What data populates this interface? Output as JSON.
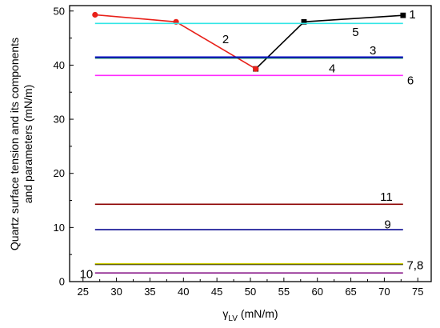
{
  "chart_data": {
    "type": "line",
    "xlabel": "γLV (mN/m)",
    "xlabel_symbol": "γ",
    "xlabel_subscript": "LV",
    "xlabel_unit": "(mN/m)",
    "ylabel_lines": [
      "Quartz surface tension and its components",
      "and parameters (mN/m)"
    ],
    "xlim": [
      23,
      77
    ],
    "ylim": [
      0,
      51
    ],
    "x_ticks": [
      25,
      30,
      35,
      40,
      45,
      50,
      55,
      60,
      65,
      70,
      75
    ],
    "y_ticks": [
      0,
      10,
      20,
      30,
      40,
      50
    ],
    "grid": false,
    "series": [
      {
        "label": "1",
        "color": "#000000",
        "marker": "square",
        "x": [
          50.8,
          58.0,
          72.8
        ],
        "y": [
          39.3,
          48.0,
          49.2
        ]
      },
      {
        "label": "2",
        "color": "#e8211a",
        "marker": "circle",
        "x": [
          26.8,
          38.9,
          50.8
        ],
        "y": [
          49.3,
          48.0,
          39.3
        ]
      },
      {
        "label": "3",
        "color": "#006666",
        "x": [
          26.8,
          72.8
        ],
        "y": [
          41.3,
          41.3
        ]
      },
      {
        "label": "4",
        "color": "#0000c8",
        "x": [
          26.8,
          72.8
        ],
        "y": [
          41.5,
          41.5
        ]
      },
      {
        "label": "5",
        "color": "#33e6e6",
        "x": [
          26.8,
          72.8
        ],
        "y": [
          47.7,
          47.7
        ]
      },
      {
        "label": "6",
        "color": "#ff2bff",
        "x": [
          26.8,
          72.8
        ],
        "y": [
          38.1,
          38.1
        ]
      },
      {
        "label": "7",
        "color": "#000000",
        "x": [
          26.8,
          72.8
        ],
        "y": [
          3.2,
          3.2
        ]
      },
      {
        "label": "8",
        "color": "#cccc00",
        "x": [
          26.8,
          72.8
        ],
        "y": [
          3.3,
          3.3
        ]
      },
      {
        "label": "9",
        "color": "#0a0a90",
        "x": [
          26.8,
          72.8
        ],
        "y": [
          9.6,
          9.6
        ]
      },
      {
        "label": "10",
        "color": "#8b1c8b",
        "x": [
          26.8,
          72.8
        ],
        "y": [
          1.6,
          1.6
        ]
      },
      {
        "label": "11",
        "color": "#8b0000",
        "x": [
          26.8,
          72.8
        ],
        "y": [
          14.3,
          14.3
        ]
      }
    ],
    "annotations": [
      {
        "text": "1",
        "x": 74.2,
        "y": 49.4
      },
      {
        "text": "2",
        "x": 46.3,
        "y": 44.8
      },
      {
        "text": "3",
        "x": 68.3,
        "y": 42.7
      },
      {
        "text": "4",
        "x": 62.2,
        "y": 39.4
      },
      {
        "text": "5",
        "x": 65.7,
        "y": 46.1
      },
      {
        "text": "6",
        "x": 73.9,
        "y": 37.2
      },
      {
        "text": "7,8",
        "x": 74.6,
        "y": 3.0
      },
      {
        "text": "9",
        "x": 70.5,
        "y": 10.6
      },
      {
        "text": "10",
        "x": 25.5,
        "y": 1.4
      },
      {
        "text": "11",
        "x": 70.3,
        "y": 15.7
      }
    ]
  }
}
